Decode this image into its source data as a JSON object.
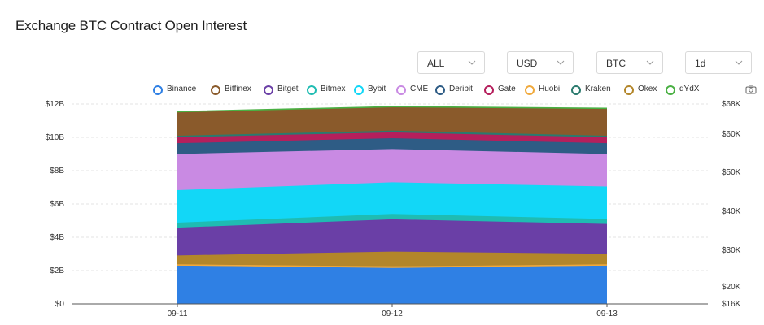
{
  "title": "Exchange BTC Contract Open Interest",
  "filters": {
    "exchange": "ALL",
    "currency": "USD",
    "coin": "BTC",
    "interval": "1d"
  },
  "icons": {
    "chevron": "chevron-down-icon",
    "camera": "camera-icon"
  },
  "chart_data": {
    "type": "area",
    "stacked": true,
    "title": "Exchange BTC Contract Open Interest",
    "x": [
      "09-11",
      "09-12",
      "09-13"
    ],
    "y_left": {
      "ticks": [
        "$0",
        "$2B",
        "$4B",
        "$6B",
        "$8B",
        "$10B",
        "$12B"
      ],
      "range": [
        0,
        12000000000
      ]
    },
    "y_right": {
      "ticks": [
        "$16K",
        "$20K",
        "$30K",
        "$40K",
        "$50K",
        "$60K",
        "$68K"
      ]
    },
    "legend_position": "top",
    "grid": true,
    "series": [
      {
        "name": "Binance",
        "color": "#2f80e4",
        "values": [
          2.3,
          2.2,
          2.3
        ]
      },
      {
        "name": "Huobi",
        "color": "#f0a93c",
        "values": [
          0.06,
          0.06,
          0.06
        ]
      },
      {
        "name": "Okex",
        "color": "#b3862a",
        "values": [
          0.55,
          0.88,
          0.65
        ]
      },
      {
        "name": "Bitget",
        "color": "#6a3fa6",
        "values": [
          1.67,
          1.94,
          1.79
        ]
      },
      {
        "name": "Bitmex",
        "color": "#1fbcb2",
        "values": [
          0.3,
          0.32,
          0.3
        ]
      },
      {
        "name": "Bybit",
        "color": "#12d7f7",
        "values": [
          1.95,
          1.9,
          1.95
        ]
      },
      {
        "name": "CME",
        "color": "#c98ae3",
        "values": [
          2.17,
          2.0,
          1.95
        ]
      },
      {
        "name": "Deribit",
        "color": "#2e5c85",
        "values": [
          0.65,
          0.65,
          0.65
        ]
      },
      {
        "name": "Gate",
        "color": "#b51f5c",
        "values": [
          0.35,
          0.35,
          0.35
        ]
      },
      {
        "name": "Kraken",
        "color": "#2b7a6e",
        "values": [
          0.1,
          0.1,
          0.1
        ]
      },
      {
        "name": "Bitfinex",
        "color": "#8a5a2b",
        "values": [
          1.4,
          1.4,
          1.6
        ]
      },
      {
        "name": "dYdX",
        "color": "#4ab043",
        "values": [
          0.05,
          0.05,
          0.05
        ]
      }
    ],
    "legend_order": [
      "Binance",
      "Bitfinex",
      "Bitget",
      "Bitmex",
      "Bybit",
      "CME",
      "Deribit",
      "Gate",
      "Huobi",
      "Kraken",
      "Okex",
      "dYdX"
    ]
  }
}
